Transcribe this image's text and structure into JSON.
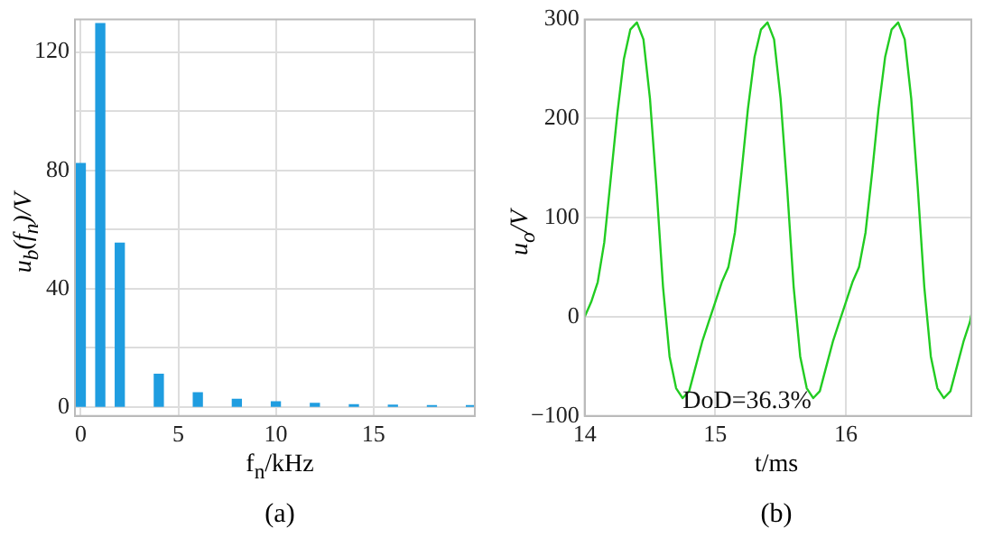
{
  "chart_data": [
    {
      "type": "bar",
      "title": "(a)",
      "xlabel": "f$_{n}$/kHz",
      "ylabel": "u$_{b}$(f$_{n}$)/V",
      "x": [
        0,
        1,
        2,
        4,
        6,
        8,
        10,
        12,
        14,
        16,
        18,
        20
      ],
      "values": [
        82.3,
        129.6,
        55.4,
        11.1,
        4.8,
        2.6,
        1.8,
        1.2,
        0.8,
        0.6,
        0.5,
        0.5
      ],
      "color": "#1f9de0",
      "xlim": [
        -0.3,
        20.2
      ],
      "xticks": [
        0,
        5,
        10,
        15
      ],
      "ylim": [
        -3,
        131
      ],
      "yticks": [
        0,
        {
          "value": 20,
          "label": null
        },
        40,
        {
          "value": 60,
          "label": null
        },
        80,
        {
          "value": 100,
          "label": null
        },
        120
      ],
      "grid": true
    },
    {
      "type": "line",
      "title": "(b)",
      "xlabel": "t/ms",
      "ylabel": "u$_{o}$/V",
      "annotations": [
        "DoD=36.3%"
      ],
      "x": [
        14,
        14.05,
        14.1,
        14.15,
        14.2,
        14.25,
        14.3,
        14.35,
        14.4,
        14.45,
        14.5,
        14.55,
        14.6,
        14.65,
        14.7,
        14.75,
        14.8,
        14.85,
        14.9,
        14.95,
        15,
        15.05,
        15.1,
        15.15,
        15.2,
        15.25,
        15.3,
        15.35,
        15.4,
        15.45,
        15.5,
        15.55,
        15.6,
        15.65,
        15.7,
        15.75,
        15.8,
        15.85,
        15.9,
        15.95,
        16,
        16.05,
        16.1,
        16.15,
        16.2,
        16.25,
        16.3,
        16.35,
        16.4,
        16.45,
        16.5,
        16.55,
        16.6,
        16.65,
        16.7,
        16.75,
        16.8,
        16.85,
        16.9,
        16.95,
        16.96
      ],
      "values": [
        0,
        15,
        35,
        75,
        140,
        205,
        260,
        290,
        297,
        280,
        220,
        130,
        30,
        -40,
        -72,
        -82,
        -75,
        -50,
        -25,
        -5,
        15,
        35,
        50,
        85,
        145,
        210,
        262,
        290,
        297,
        280,
        220,
        130,
        30,
        -40,
        -72,
        -82,
        -75,
        -50,
        -25,
        -5,
        15,
        35,
        50,
        85,
        145,
        210,
        262,
        290,
        297,
        280,
        220,
        130,
        30,
        -40,
        -72,
        -82,
        -75,
        -50,
        -25,
        -5,
        2
      ],
      "color": "#22cc22",
      "marker": "none",
      "line_style": "solid",
      "xlim": [
        14,
        16.96
      ],
      "xticks": [
        14,
        15,
        16
      ],
      "ylim": [
        -100,
        300
      ],
      "yticks": [
        {
          "value": -100,
          "label": "−100"
        },
        0,
        100,
        200,
        300
      ],
      "grid": true
    }
  ]
}
